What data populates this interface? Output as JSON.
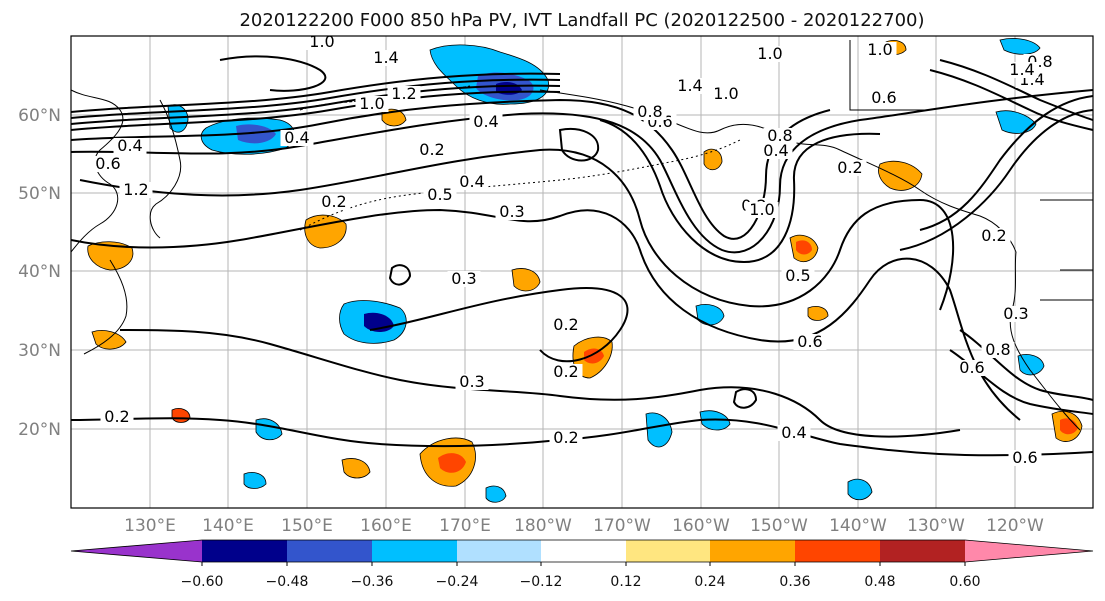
{
  "title": "2020122200 F000 850 hPa PV, IVT Landfall PC (2020122500 - 2020122700)",
  "lat_labels": [
    "60°N",
    "50°N",
    "40°N",
    "30°N",
    "20°N"
  ],
  "lon_labels": [
    "130°E",
    "140°E",
    "150°E",
    "160°E",
    "170°E",
    "180°W",
    "170°W",
    "160°W",
    "150°W",
    "140°W",
    "130°W",
    "120°W"
  ],
  "colorbar": {
    "colors": [
      "#9933cc",
      "#00008b",
      "#3355cc",
      "#00bfff",
      "#b0e0ff",
      "#ffffff",
      "#ffe680",
      "#ffa500",
      "#ff4500",
      "#b22222",
      "#ff88aa"
    ],
    "tick_labels": [
      "−0.60",
      "−0.48",
      "−0.36",
      "−0.24",
      "−0.12",
      "0.12",
      "0.24",
      "0.36",
      "0.48",
      "0.60"
    ]
  },
  "contour_labels": [
    "1.0",
    "1.4",
    "1.0",
    "1.4",
    "1.0",
    "1.0",
    "1.4",
    "0.8",
    "1.4",
    "0.4",
    "0.6",
    "0.4",
    "1.0",
    "1.2",
    "0.4",
    "0.2",
    "0.6",
    "0.8",
    "1.2",
    "0.5",
    "0.4",
    "0.2",
    "0.3",
    "0.2",
    "0.8",
    "0.2",
    "0.2",
    "0.4",
    "1.0",
    "0.5",
    "0.6",
    "0.3",
    "0.3",
    "0.3",
    "0.2",
    "0.2",
    "0.2",
    "0.2",
    "0.4",
    "0.6",
    "0.8",
    "0.6",
    "0.6"
  ]
}
